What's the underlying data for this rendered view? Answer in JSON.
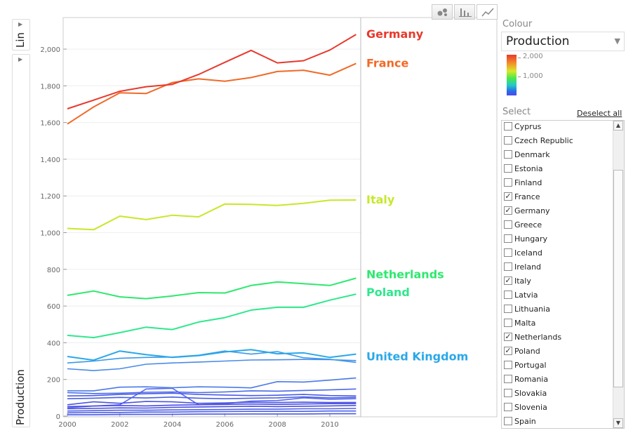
{
  "chart_data": {
    "type": "line",
    "ylabel": "Production",
    "scale_label": "Lin",
    "x_ticks": [
      "2000",
      "2002",
      "2004",
      "2006",
      "2008",
      "2010"
    ],
    "y_ticks": [
      "0",
      "200",
      "400",
      "600",
      "800",
      "1,000",
      "1,200",
      "1,400",
      "1,600",
      "1,800",
      "2,000"
    ],
    "xlim": [
      2000,
      2011.3
    ],
    "ylim": [
      0,
      2170
    ],
    "x": [
      2000,
      2001,
      2002,
      2003,
      2004,
      2005,
      2006,
      2007,
      2008,
      2009,
      2010,
      2011
    ],
    "series": [
      {
        "name": "Germany",
        "label": "Germany",
        "color": "#e8392c",
        "values": [
          1675,
          1722,
          1770,
          1795,
          1808,
          1862,
          1928,
          1993,
          1925,
          1937,
          1995,
          2080
        ]
      },
      {
        "name": "France",
        "label": "France",
        "color": "#f06a28",
        "values": [
          1592,
          1685,
          1762,
          1758,
          1818,
          1838,
          1825,
          1845,
          1878,
          1885,
          1858,
          1922
        ]
      },
      {
        "name": "Italy",
        "label": "Italy",
        "color": "#c6e82a",
        "values": [
          1023,
          1016,
          1090,
          1071,
          1095,
          1086,
          1156,
          1154,
          1148,
          1160,
          1177,
          1178
        ]
      },
      {
        "name": "Netherlands",
        "label": "Netherlands",
        "color": "#2ee86e",
        "values": [
          658,
          682,
          650,
          640,
          655,
          673,
          671,
          712,
          731,
          722,
          712,
          752
        ]
      },
      {
        "name": "Poland",
        "label": "Poland",
        "color": "#2ee88c",
        "values": [
          440,
          428,
          455,
          485,
          472,
          513,
          537,
          578,
          593,
          593,
          632,
          665
        ]
      },
      {
        "name": "United Kingdom",
        "label": "United Kingdom",
        "color": "#2aa8e8",
        "values": [
          325,
          305,
          355,
          335,
          320,
          330,
          350,
          362,
          340,
          345,
          320,
          338
        ]
      },
      {
        "name": "",
        "label": "",
        "color": "#3a9ae8",
        "values": [
          290,
          300,
          315,
          320,
          322,
          332,
          355,
          338,
          352,
          318,
          310,
          293
        ]
      },
      {
        "name": "",
        "label": "",
        "color": "#4a8ae8",
        "values": [
          258,
          248,
          258,
          283,
          290,
          295,
          300,
          306,
          307,
          309,
          308,
          303
        ]
      },
      {
        "name": "",
        "label": "",
        "color": "#4a7ae8",
        "values": [
          138,
          138,
          158,
          160,
          155,
          160,
          158,
          154,
          188,
          186,
          196,
          208
        ]
      },
      {
        "name": "",
        "label": "",
        "color": "#4a6ae8",
        "values": [
          128,
          123,
          125,
          130,
          132,
          128,
          132,
          138,
          136,
          140,
          143,
          148
        ]
      },
      {
        "name": "",
        "label": "",
        "color": "#4a5ae8",
        "values": [
          110,
          112,
          118,
          122,
          125,
          118,
          115,
          112,
          114,
          118,
          112,
          110
        ]
      },
      {
        "name": "",
        "label": "",
        "color": "#4a60e0",
        "values": [
          95,
          98,
          102,
          99,
          104,
          98,
          95,
          98,
          100,
          105,
          100,
          102
        ]
      },
      {
        "name": "",
        "label": "",
        "color": "#4a55e0",
        "values": [
          62,
          78,
          70,
          80,
          78,
          70,
          72,
          76,
          74,
          76,
          74,
          75
        ]
      },
      {
        "name": "",
        "label": "",
        "color": "#4a4ae8",
        "values": [
          52,
          55,
          58,
          56,
          60,
          62,
          64,
          66,
          64,
          66,
          68,
          68
        ]
      },
      {
        "name": "",
        "label": "",
        "color": "#4a50d8",
        "values": [
          40,
          42,
          45,
          44,
          48,
          50,
          52,
          54,
          52,
          54,
          56,
          58
        ]
      },
      {
        "name": "",
        "label": "",
        "color": "#5060e0",
        "values": [
          28,
          30,
          32,
          32,
          34,
          35,
          36,
          38,
          38,
          40,
          40,
          42
        ]
      },
      {
        "name": "",
        "label": "",
        "color": "#4a60e8",
        "values": [
          18,
          20,
          20,
          22,
          22,
          24,
          25,
          26,
          26,
          26,
          28,
          28
        ]
      },
      {
        "name": "",
        "label": "",
        "color": "#4a58e8",
        "values": [
          8,
          8,
          9,
          10,
          10,
          11,
          11,
          12,
          12,
          12,
          13,
          13
        ]
      },
      {
        "name": "",
        "label": "",
        "color": "#5a6aee",
        "values": [
          45,
          55,
          62,
          148,
          152,
          62,
          68,
          82,
          85,
          100,
          92,
          95
        ]
      }
    ]
  },
  "view_buttons": [
    {
      "icon": "bubble-chart-icon"
    },
    {
      "icon": "bar-chart-icon"
    },
    {
      "icon": "line-chart-icon"
    }
  ],
  "colour_panel": {
    "label": "Colour",
    "selected": "Production",
    "legend_max": "2,000",
    "legend_mid": "1,000"
  },
  "select_panel": {
    "label": "Select",
    "deselect_label": "Deselect all",
    "items": [
      {
        "label": "Cyprus",
        "checked": false
      },
      {
        "label": "Czech Republic",
        "checked": false
      },
      {
        "label": "Denmark",
        "checked": false
      },
      {
        "label": "Estonia",
        "checked": false
      },
      {
        "label": "Finland",
        "checked": false
      },
      {
        "label": "France",
        "checked": true
      },
      {
        "label": "Germany",
        "checked": true
      },
      {
        "label": "Greece",
        "checked": false
      },
      {
        "label": "Hungary",
        "checked": false
      },
      {
        "label": "Iceland",
        "checked": false
      },
      {
        "label": "Ireland",
        "checked": false
      },
      {
        "label": "Italy",
        "checked": true
      },
      {
        "label": "Latvia",
        "checked": false
      },
      {
        "label": "Lithuania",
        "checked": false
      },
      {
        "label": "Malta",
        "checked": false
      },
      {
        "label": "Netherlands",
        "checked": true
      },
      {
        "label": "Poland",
        "checked": true
      },
      {
        "label": "Portugal",
        "checked": false
      },
      {
        "label": "Romania",
        "checked": false
      },
      {
        "label": "Slovakia",
        "checked": false
      },
      {
        "label": "Slovenia",
        "checked": false
      },
      {
        "label": "Spain",
        "checked": false
      }
    ]
  }
}
